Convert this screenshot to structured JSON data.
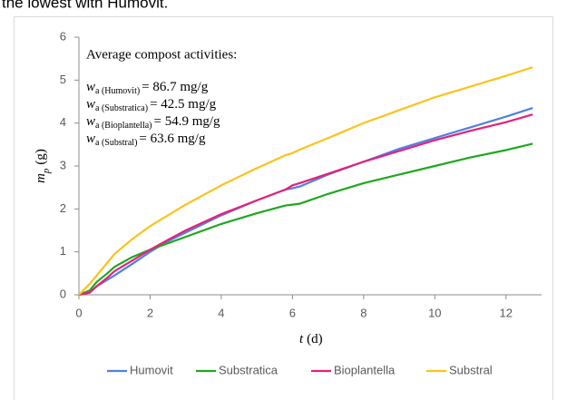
{
  "caption_fragment": "the lowest with Humovit.",
  "chart_data": {
    "type": "line",
    "x_label": {
      "symbol": "t",
      "unit": "(d)"
    },
    "y_label": {
      "symbol": "m",
      "subscript": "p",
      "unit": "(g)"
    },
    "annotation": {
      "title": "Average compost activities:",
      "lines": [
        {
          "symbol": "w",
          "subscript": "a (Humovit)",
          "text": "= 86.7 mg/g"
        },
        {
          "symbol": "w",
          "subscript": "a (Substratica)",
          "text": "= 42.5 mg/g"
        },
        {
          "symbol": "w",
          "subscript": "a (Bioplantella)",
          "text": "= 54.9 mg/g"
        },
        {
          "symbol": "w",
          "subscript": "a (Substral)",
          "text": "= 63.6 mg/g"
        }
      ]
    },
    "x": [
      0,
      0.3,
      0.5,
      0.8,
      1,
      1.5,
      2,
      2.5,
      3,
      4,
      5,
      5.8,
      6,
      6.2,
      7,
      8,
      9,
      10,
      11,
      12,
      12.75
    ],
    "series": [
      {
        "name": "Humovit",
        "color": "#4f81e0",
        "values": [
          0,
          0.05,
          0.2,
          0.35,
          0.45,
          0.72,
          1.0,
          1.25,
          1.45,
          1.85,
          2.2,
          2.45,
          2.48,
          2.52,
          2.8,
          3.1,
          3.4,
          3.65,
          3.9,
          4.15,
          4.35
        ]
      },
      {
        "name": "Substratica",
        "color": "#1ea81e",
        "values": [
          0,
          0.1,
          0.3,
          0.5,
          0.65,
          0.88,
          1.05,
          1.2,
          1.35,
          1.65,
          1.9,
          2.08,
          2.1,
          2.12,
          2.35,
          2.6,
          2.8,
          3.0,
          3.2,
          3.37,
          3.52
        ]
      },
      {
        "name": "Bioplantella",
        "color": "#e8207a",
        "values": [
          0,
          0.05,
          0.2,
          0.4,
          0.55,
          0.8,
          1.05,
          1.28,
          1.5,
          1.88,
          2.2,
          2.45,
          2.55,
          2.6,
          2.82,
          3.1,
          3.35,
          3.6,
          3.82,
          4.02,
          4.2
        ]
      },
      {
        "name": "Substral",
        "color": "#fcc21c",
        "values": [
          0,
          0.25,
          0.45,
          0.75,
          0.95,
          1.3,
          1.6,
          1.85,
          2.1,
          2.55,
          2.95,
          3.25,
          3.3,
          3.38,
          3.65,
          4.0,
          4.3,
          4.6,
          4.85,
          5.1,
          5.3
        ]
      }
    ],
    "xlim": [
      0,
      13
    ],
    "xticks": [
      0,
      2,
      4,
      6,
      8,
      10,
      12
    ],
    "ylim": [
      0,
      6
    ],
    "yticks": [
      0,
      1,
      2,
      3,
      4,
      5,
      6
    ],
    "grid": false,
    "legend": "bottom"
  }
}
